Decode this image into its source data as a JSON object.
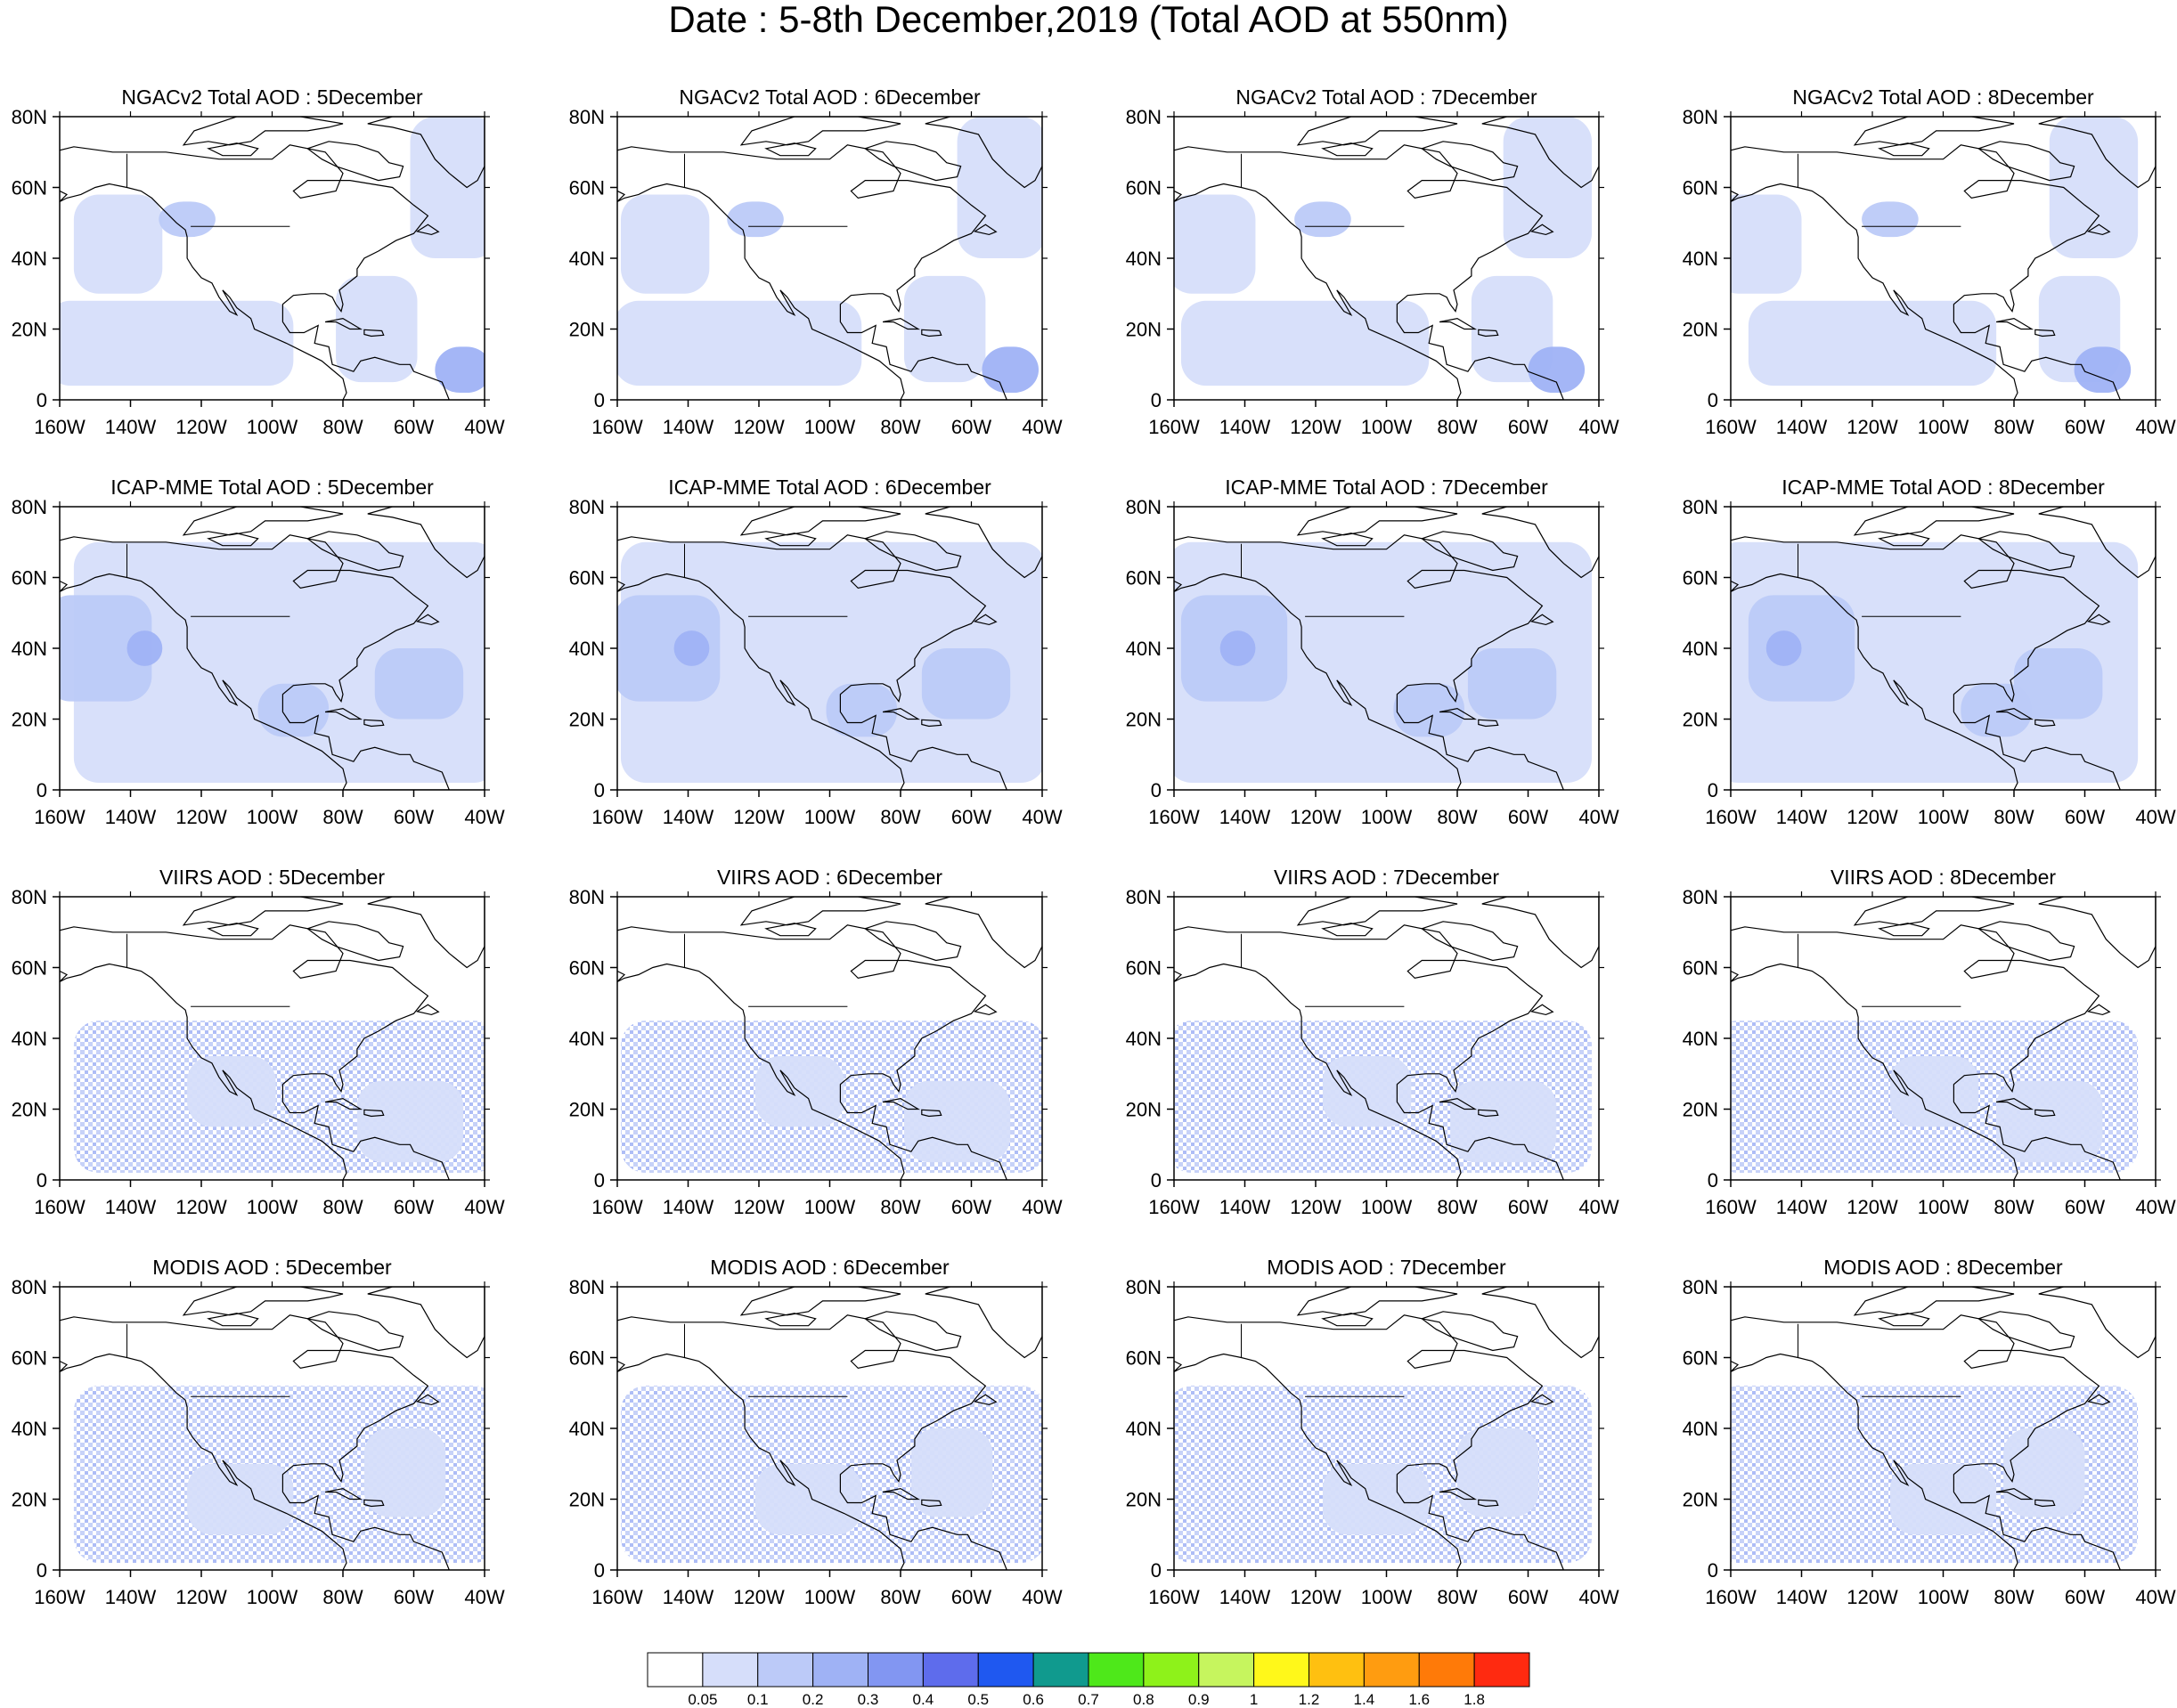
{
  "title": "Date : 5-8th December,2019 (Total AOD at 550nm)",
  "dates": [
    "5December",
    "6December",
    "7December",
    "8December"
  ],
  "rows": [
    {
      "label": "NGACv2 Total AOD : "
    },
    {
      "label": "ICAP-MME Total AOD : "
    },
    {
      "label": "VIIRS AOD : "
    },
    {
      "label": "MODIS AOD : "
    }
  ],
  "map_extent": {
    "lon": [
      -160,
      -40
    ],
    "lat": [
      0,
      80
    ]
  },
  "x_ticks": [
    "160W",
    "140W",
    "120W",
    "100W",
    "80W",
    "60W",
    "40W"
  ],
  "y_ticks": [
    "80N",
    "60N",
    "40N",
    "20N",
    "0"
  ],
  "colorbar": {
    "colors": [
      "#ffffff",
      "#d6defa",
      "#bccaf8",
      "#9fb2f5",
      "#8296f2",
      "#5e6cec",
      "#1f58f0",
      "#109a8e",
      "#4ee81a",
      "#8ef21a",
      "#c6f55e",
      "#fff81a",
      "#ffc010",
      "#ff9c10",
      "#ff7a08",
      "#ff2a10"
    ],
    "labels": [
      "0.05",
      "0.1",
      "0.2",
      "0.3",
      "0.4",
      "0.5",
      "0.6",
      "0.7",
      "0.8",
      "0.9",
      "1",
      "1.2",
      "1.4",
      "1.6",
      "1.8"
    ]
  }
}
